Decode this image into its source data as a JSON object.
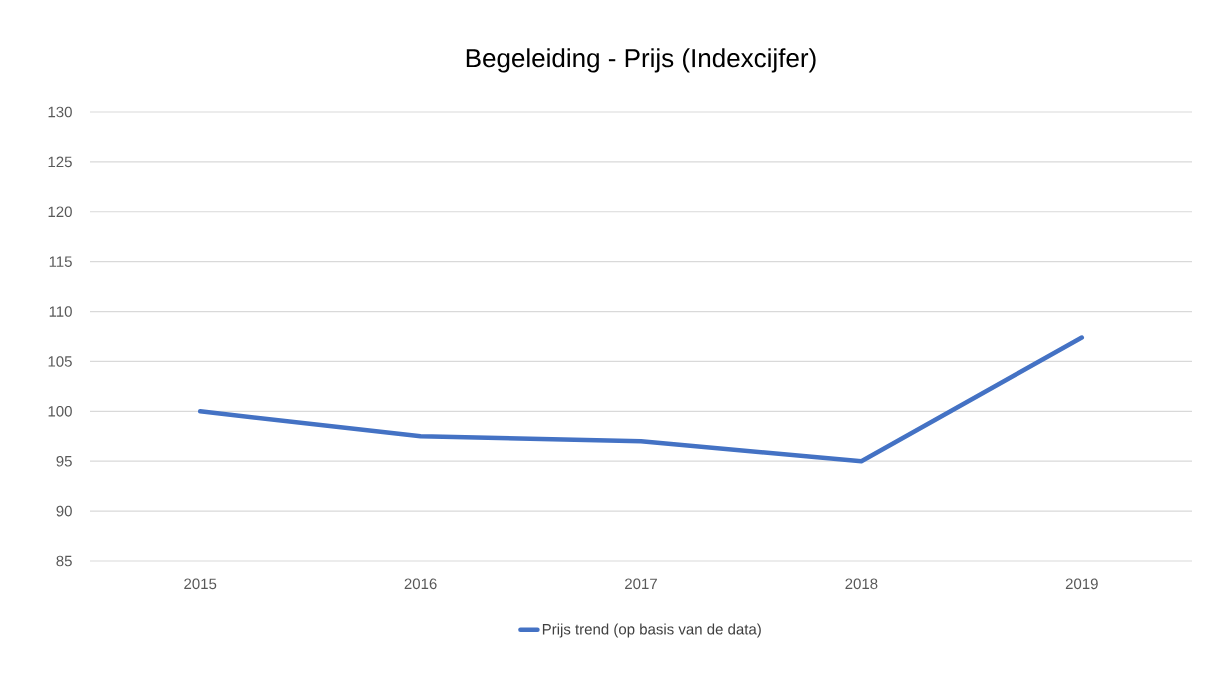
{
  "chart_data": {
    "type": "line",
    "title": "Begeleiding - Prijs (Indexcijfer)",
    "categories": [
      "2015",
      "2016",
      "2017",
      "2018",
      "2019"
    ],
    "series": [
      {
        "name": "Prijs trend (op basis van de data)",
        "color": "#4472c4",
        "values": [
          100,
          97.5,
          97,
          95,
          107.4
        ]
      }
    ],
    "ylim": [
      85,
      130
    ],
    "yticks": [
      85,
      90,
      95,
      100,
      105,
      110,
      115,
      120,
      125,
      130
    ],
    "grid": "y",
    "legend": "bottom"
  }
}
